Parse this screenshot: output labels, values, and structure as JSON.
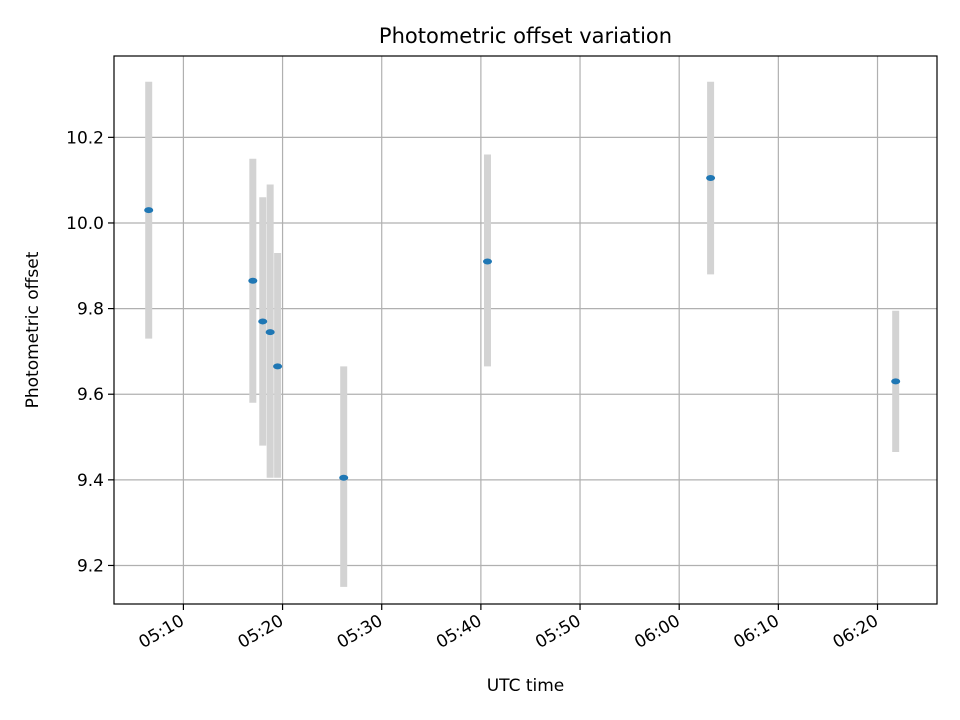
{
  "chart_data": {
    "type": "scatter",
    "title": "Photometric offset variation",
    "xlabel": "UTC time",
    "ylabel": "Photometric offset",
    "x_axis_kind": "time",
    "xlim": [
      "05:03:00",
      "06:26:00"
    ],
    "ylim": [
      9.11,
      10.39
    ],
    "x_ticks": [
      "05:10",
      "05:20",
      "05:30",
      "05:40",
      "05:50",
      "06:00",
      "06:10",
      "06:20"
    ],
    "y_ticks": [
      9.2,
      9.4,
      9.6,
      9.8,
      10.0,
      10.2
    ],
    "grid": true,
    "series": [
      {
        "points": [
          {
            "x": "05:06:30",
            "y": 10.03,
            "err_low": 9.73,
            "err_high": 10.33
          },
          {
            "x": "05:17:00",
            "y": 9.865,
            "err_low": 9.58,
            "err_high": 10.15
          },
          {
            "x": "05:18:00",
            "y": 9.77,
            "err_low": 9.48,
            "err_high": 10.06
          },
          {
            "x": "05:18:45",
            "y": 9.745,
            "err_low": 9.405,
            "err_high": 10.09
          },
          {
            "x": "05:19:30",
            "y": 9.665,
            "err_low": 9.405,
            "err_high": 9.93
          },
          {
            "x": "05:26:10",
            "y": 9.405,
            "err_low": 9.15,
            "err_high": 9.665
          },
          {
            "x": "05:40:40",
            "y": 9.91,
            "err_low": 9.665,
            "err_high": 10.16
          },
          {
            "x": "06:03:10",
            "y": 10.105,
            "err_low": 9.88,
            "err_high": 10.33
          },
          {
            "x": "06:21:50",
            "y": 9.63,
            "err_low": 9.465,
            "err_high": 9.795
          }
        ]
      }
    ],
    "colors": {
      "point": "#1f77b4",
      "errorbar": "#d3d3d3",
      "grid": "#b0b0b0",
      "axes": "#000000"
    }
  }
}
